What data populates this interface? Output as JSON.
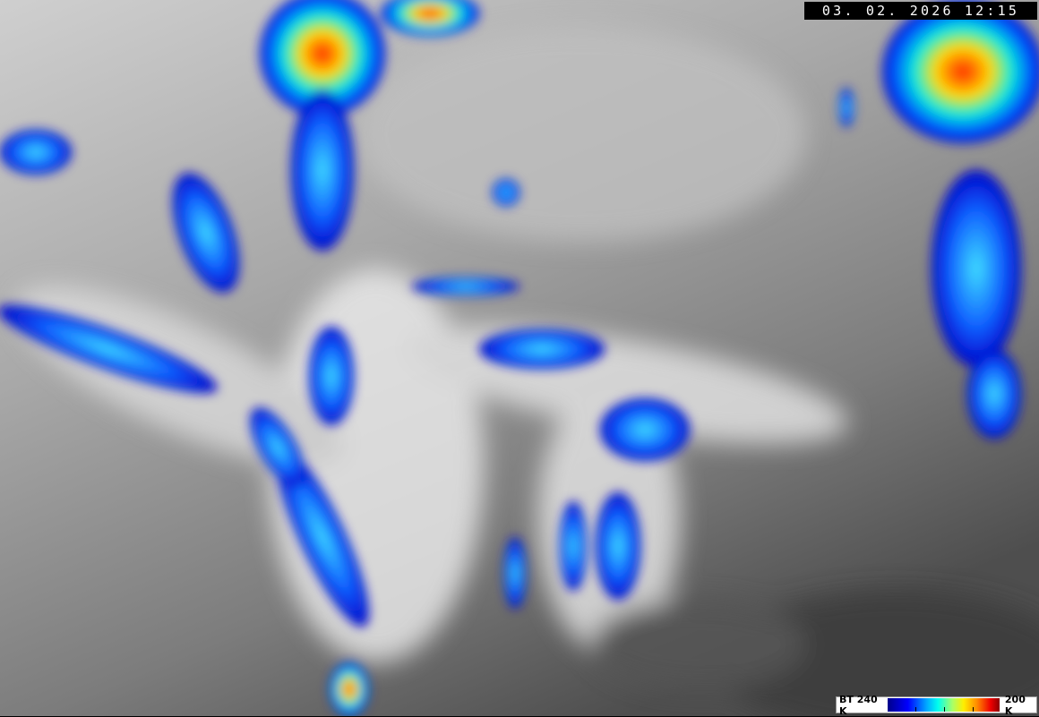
{
  "timestamp": "03. 02. 2026  12:15",
  "legend": {
    "label_low": "BT 240 K",
    "label_high": "200 K",
    "colors": [
      "#00008a",
      "#0000ff",
      "#00aaff",
      "#00ffee",
      "#aaff66",
      "#ffee00",
      "#ff8800",
      "#ee0000",
      "#8a0000"
    ]
  },
  "imagery": {
    "type": "infrared satellite brightness-temperature image",
    "palette_background": [
      "#d8d8d8",
      "#9a9a9a",
      "#5a5a5a"
    ]
  }
}
